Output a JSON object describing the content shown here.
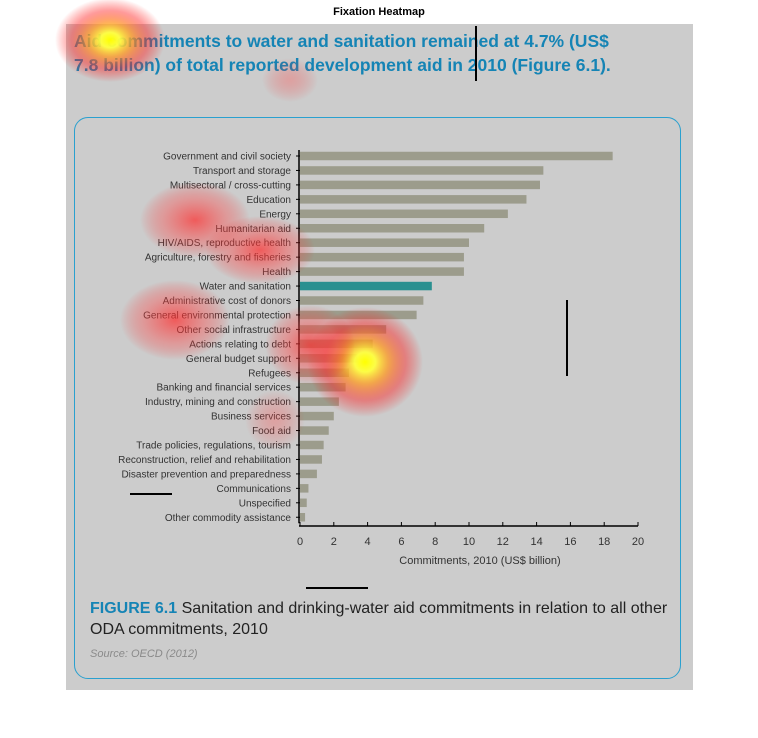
{
  "figure_title": "Fixation Heatmap",
  "headline": "Aid commitments to water and sanitation remained at 4.7% (US$ 7.8 billion) of total reported development aid in 2010 (Figure 6.1).",
  "caption": {
    "label": "FIGURE 6.1",
    "text": " Sanitation and drinking-water aid commitments in relation to all other ODA commitments, 2010"
  },
  "source": "Source: OECD (2012)",
  "colors": {
    "background_panel": "#cccccc",
    "bar": "#9c9c8c",
    "highlight_bar": "#2a9090",
    "accent_text": "#1584b5",
    "frame": "#2aa0cf"
  },
  "chart_data": {
    "type": "bar",
    "orientation": "horizontal",
    "categories": [
      "Government and civil society",
      "Transport and storage",
      "Multisectoral / cross-cutting",
      "Education",
      "Energy",
      "Humanitarian aid",
      "HIV/AIDS, reproductive health",
      "Agriculture, forestry and fisheries",
      "Health",
      "Water and sanitation",
      "Administrative cost of donors",
      "General environmental protection",
      "Other social infrastructure",
      "Actions relating to debt",
      "General budget support",
      "Refugees",
      "Banking and financial services",
      "Industry, mining and construction",
      "Business services",
      "Food aid",
      "Trade policies, regulations, tourism",
      "Reconstruction, relief and rehabilitation",
      "Disaster prevention and preparedness",
      "Communications",
      "Unspecified",
      "Other commodity assistance"
    ],
    "values": [
      18.5,
      14.4,
      14.2,
      13.4,
      12.3,
      10.9,
      10.0,
      9.7,
      9.7,
      7.8,
      7.3,
      6.9,
      5.1,
      4.3,
      3.4,
      2.9,
      2.7,
      2.3,
      2.0,
      1.7,
      1.4,
      1.3,
      1.0,
      0.5,
      0.4,
      0.3
    ],
    "highlight": "Water and sanitation",
    "xlabel": "Commitments, 2010 (US$ billion)",
    "xlim": [
      0,
      20
    ],
    "xticks": [
      0,
      2,
      4,
      6,
      8,
      10,
      12,
      14,
      16,
      18,
      20
    ],
    "grid": false
  },
  "heatmap_overlay": {
    "description_hidden": true
  }
}
